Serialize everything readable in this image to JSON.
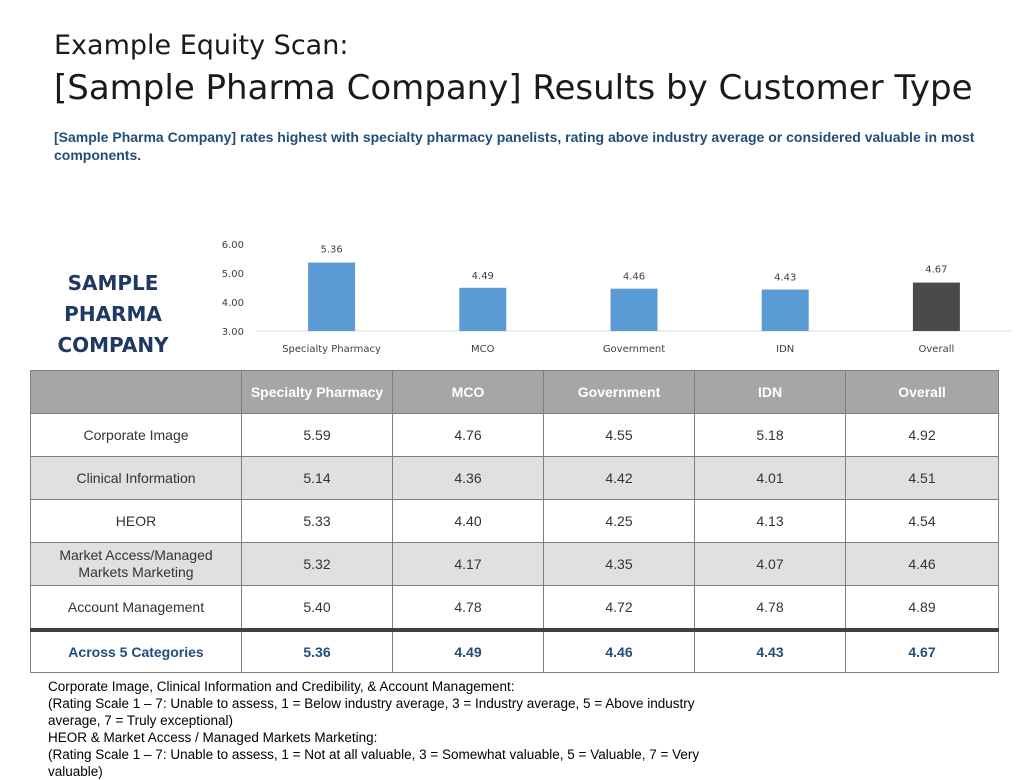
{
  "header": {
    "title_line1": "Example Equity Scan:",
    "title_line2": "[Sample Pharma Company] Results by Customer Type",
    "subtitle": "[Sample Pharma Company] rates highest with specialty pharmacy panelists, rating above industry average or considered valuable in most components."
  },
  "company_label": [
    "SAMPLE",
    "PHARMA",
    "COMPANY"
  ],
  "chart_data": {
    "type": "bar",
    "categories": [
      "Specialty Pharmacy",
      "MCO",
      "Government",
      "IDN",
      "Overall"
    ],
    "values": [
      5.36,
      4.49,
      4.46,
      4.43,
      4.67
    ],
    "value_labels": [
      "5.36",
      "4.49",
      "4.46",
      "4.43",
      "4.67"
    ],
    "yticks": [
      "3.00",
      "4.00",
      "5.00",
      "6.00"
    ],
    "ylim": [
      3,
      6
    ],
    "colors": [
      "#5b9bd5",
      "#5b9bd5",
      "#5b9bd5",
      "#5b9bd5",
      "#4a4a4a"
    ],
    "grid": false,
    "title": "",
    "xlabel": "",
    "ylabel": ""
  },
  "table": {
    "columns": [
      "",
      "Specialty Pharmacy",
      "MCO",
      "Government",
      "IDN",
      "Overall"
    ],
    "rows": [
      {
        "label": "Corporate Image",
        "values": [
          "5.59",
          "4.76",
          "4.55",
          "5.18",
          "4.92"
        ]
      },
      {
        "label": "Clinical Information",
        "values": [
          "5.14",
          "4.36",
          "4.42",
          "4.01",
          "4.51"
        ]
      },
      {
        "label": "HEOR",
        "values": [
          "5.33",
          "4.40",
          "4.25",
          "4.13",
          "4.54"
        ]
      },
      {
        "label": "Market Access/Managed Markets Marketing",
        "values": [
          "5.32",
          "4.17",
          "4.35",
          "4.07",
          "4.46"
        ]
      },
      {
        "label": "Account Management",
        "values": [
          "5.40",
          "4.78",
          "4.72",
          "4.78",
          "4.89"
        ]
      }
    ],
    "total": {
      "label": "Across 5 Categories",
      "values": [
        "5.36",
        "4.49",
        "4.46",
        "4.43",
        "4.67"
      ]
    }
  },
  "footnote": [
    "Corporate Image, Clinical Information and Credibility, & Account Management:",
    "(Rating Scale 1 – 7: Unable to assess, 1 = Below industry average, 3 = Industry average, 5 = Above industry average, 7 = Truly exceptional)",
    "HEOR & Market Access / Managed Markets Marketing:",
    "(Rating Scale 1 – 7: Unable to assess, 1 = Not at all valuable, 3 = Somewhat valuable, 5 = Valuable, 7 = Very valuable)"
  ]
}
